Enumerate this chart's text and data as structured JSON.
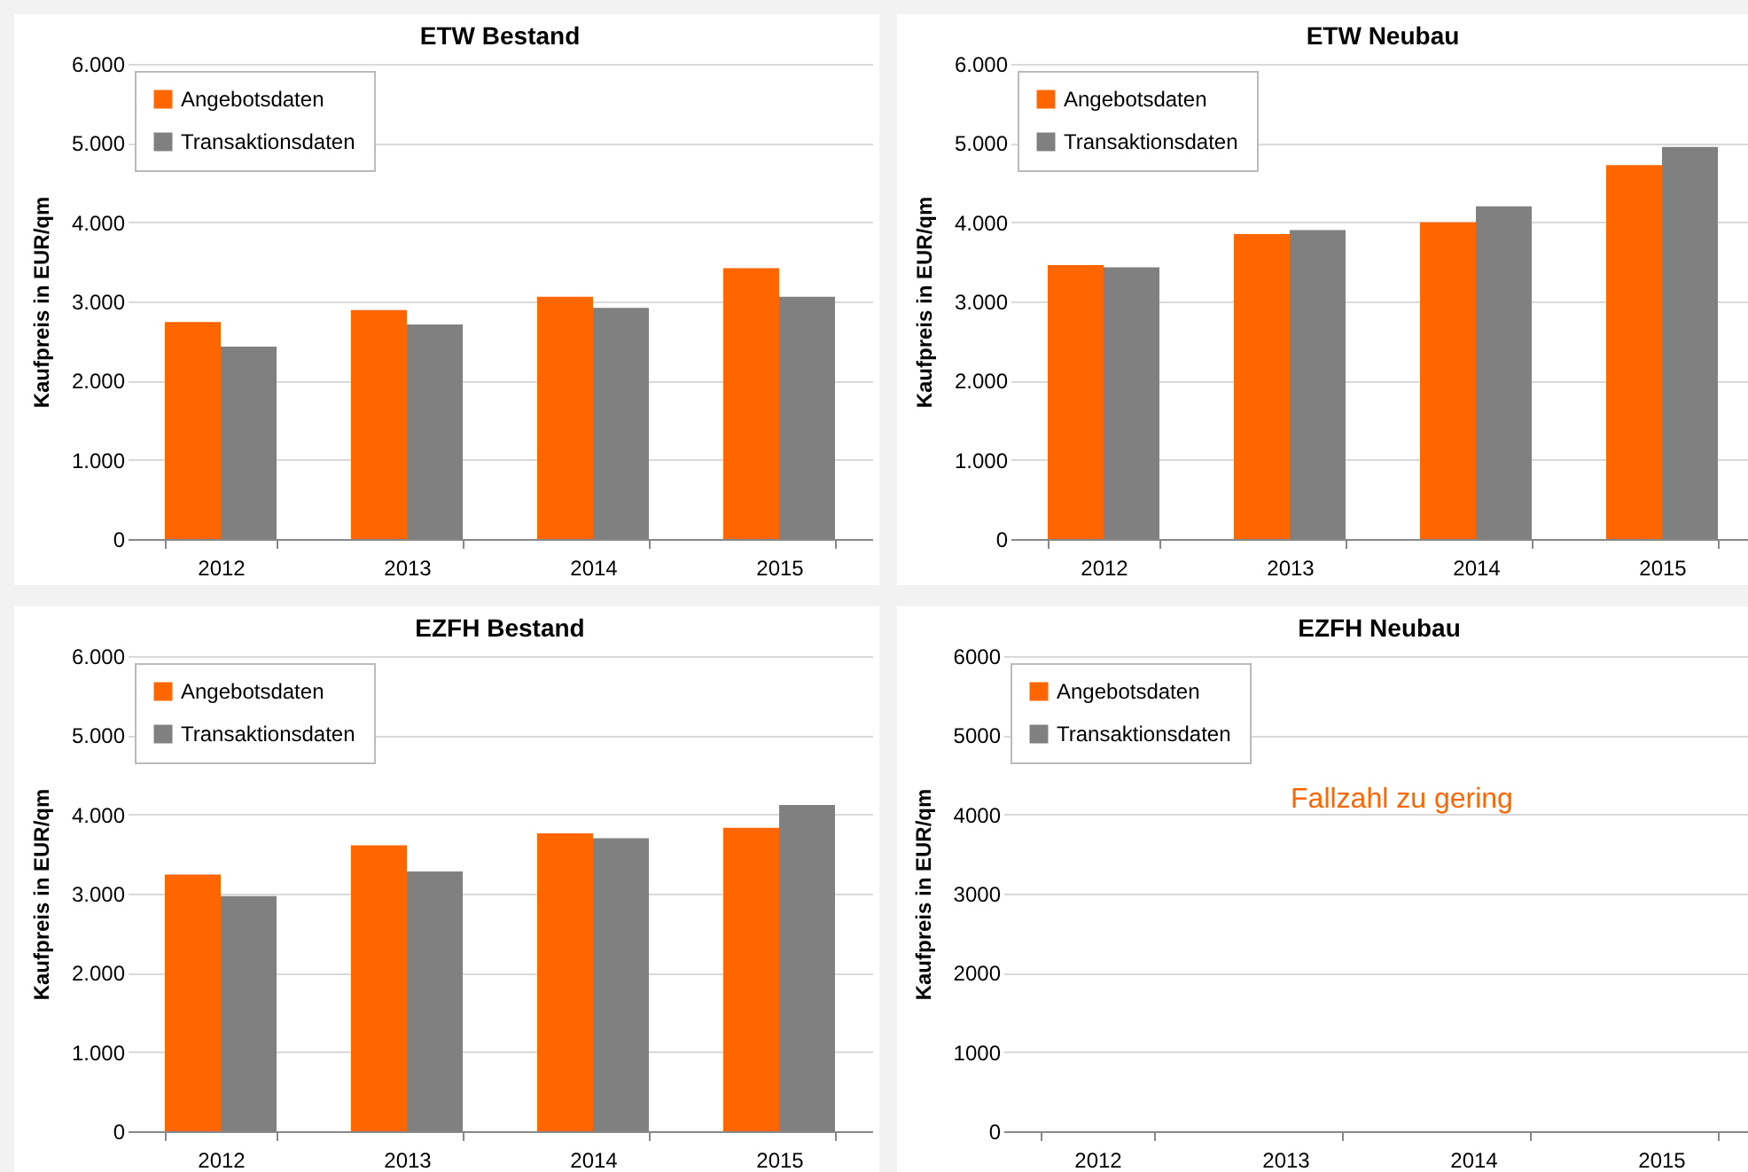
{
  "chart_data": [
    {
      "type": "bar",
      "title": "ETW Bestand",
      "ylabel": "Kaufpreis in EUR/qm",
      "categories": [
        "2012",
        "2013",
        "2014",
        "2015"
      ],
      "series": [
        {
          "name": "Angebotsdaten",
          "color": "#ff6600",
          "values": [
            2740,
            2890,
            3060,
            3420
          ]
        },
        {
          "name": "Transaktionsdaten",
          "color": "#808080",
          "values": [
            2430,
            2710,
            2920,
            3060
          ]
        }
      ],
      "ylim": [
        0,
        6000
      ],
      "yticks": [
        {
          "value": 0,
          "label": "0"
        },
        {
          "value": 1000,
          "label": "1.000"
        },
        {
          "value": 2000,
          "label": "2.000"
        },
        {
          "value": 3000,
          "label": "3.000"
        },
        {
          "value": 4000,
          "label": "4.000"
        },
        {
          "value": 5000,
          "label": "5.000"
        },
        {
          "value": 6000,
          "label": "6.000"
        }
      ],
      "grid": "y",
      "legend": "top left"
    },
    {
      "type": "bar",
      "title": "ETW Neubau",
      "ylabel": "Kaufpreis in EUR/qm",
      "categories": [
        "2012",
        "2013",
        "2014",
        "2015"
      ],
      "series": [
        {
          "name": "Angebotsdaten",
          "color": "#ff6600",
          "values": [
            3460,
            3850,
            4000,
            4720
          ]
        },
        {
          "name": "Transaktionsdaten",
          "color": "#808080",
          "values": [
            3430,
            3900,
            4200,
            4950
          ]
        }
      ],
      "ylim": [
        0,
        6000
      ],
      "yticks": [
        {
          "value": 0,
          "label": "0"
        },
        {
          "value": 1000,
          "label": "1.000"
        },
        {
          "value": 2000,
          "label": "2.000"
        },
        {
          "value": 3000,
          "label": "3.000"
        },
        {
          "value": 4000,
          "label": "4.000"
        },
        {
          "value": 5000,
          "label": "5.000"
        },
        {
          "value": 6000,
          "label": "6.000"
        }
      ],
      "grid": "y",
      "legend": "top left"
    },
    {
      "type": "bar",
      "title": "EZFH Bestand",
      "ylabel": "Kaufpreis in EUR/qm",
      "categories": [
        "2012",
        "2013",
        "2014",
        "2015"
      ],
      "series": [
        {
          "name": "Angebotsdaten",
          "color": "#ff6600",
          "values": [
            3240,
            3610,
            3760,
            3830
          ]
        },
        {
          "name": "Transaktionsdaten",
          "color": "#808080",
          "values": [
            2970,
            3280,
            3700,
            4120
          ]
        }
      ],
      "ylim": [
        0,
        6000
      ],
      "yticks": [
        {
          "value": 0,
          "label": "0"
        },
        {
          "value": 1000,
          "label": "1.000"
        },
        {
          "value": 2000,
          "label": "2.000"
        },
        {
          "value": 3000,
          "label": "3.000"
        },
        {
          "value": 4000,
          "label": "4.000"
        },
        {
          "value": 5000,
          "label": "5.000"
        },
        {
          "value": 6000,
          "label": "6.000"
        }
      ],
      "grid": "y",
      "legend": "top left"
    },
    {
      "type": "bar",
      "title": "EZFH Neubau",
      "ylabel": "Kaufpreis in EUR/qm",
      "categories": [
        "2012",
        "2013",
        "2014",
        "2015"
      ],
      "series": [
        {
          "name": "Angebotsdaten",
          "color": "#ff6600",
          "values": [
            null,
            null,
            null,
            null
          ]
        },
        {
          "name": "Transaktionsdaten",
          "color": "#808080",
          "values": [
            null,
            null,
            null,
            null
          ]
        }
      ],
      "ylim": [
        0,
        6000
      ],
      "yticks": [
        0,
        1000,
        2000,
        3000,
        4000,
        5000,
        6000
      ],
      "grid": "y",
      "legend": "top left",
      "annotations": [
        "Fallzahl zu gering"
      ]
    }
  ]
}
